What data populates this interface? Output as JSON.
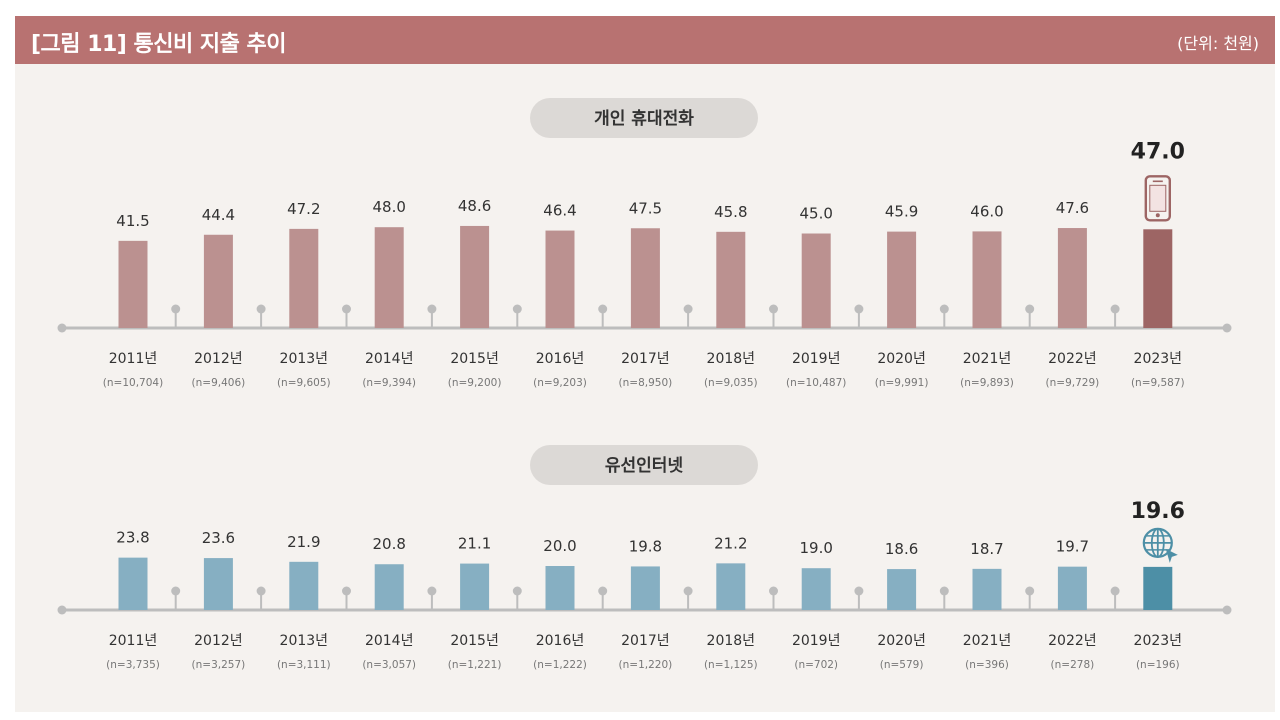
{
  "header": {
    "title": "[그림 11]  통신비 지출 추이",
    "unit": "(단위: 천원)"
  },
  "colors": {
    "header_bg": "#b87271",
    "panel_bg": "#f5f2ef",
    "mobile_bar": "#bb9190",
    "mobile_bar_highlight": "#9d6564",
    "internet_bar": "#86afc2",
    "internet_bar_highlight": "#4d8fa6",
    "axis": "#bdbdbd",
    "pill": "#dcd9d6"
  },
  "icons": [
    "smartphone-icon",
    "globe-icon"
  ],
  "chart_data": [
    {
      "type": "bar",
      "title": "개인 휴대전화",
      "categories": [
        "2011년",
        "2012년",
        "2013년",
        "2014년",
        "2015년",
        "2016년",
        "2017년",
        "2018년",
        "2019년",
        "2020년",
        "2021년",
        "2022년",
        "2023년"
      ],
      "sample_sizes": [
        "(n=10,704)",
        "(n=9,406)",
        "(n=9,605)",
        "(n=9,394)",
        "(n=9,200)",
        "(n=9,203)",
        "(n=8,950)",
        "(n=9,035)",
        "(n=10,487)",
        "(n=9,991)",
        "(n=9,893)",
        "(n=9,729)",
        "(n=9,587)"
      ],
      "values": [
        41.5,
        44.4,
        47.2,
        48.0,
        48.6,
        46.4,
        47.5,
        45.8,
        45.0,
        45.9,
        46.0,
        47.6,
        47.0
      ],
      "value_labels": [
        "41.5",
        "44.4",
        "47.2",
        "48.0",
        "48.6",
        "46.4",
        "47.5",
        "45.8",
        "45.0",
        "45.9",
        "46.0",
        "47.6",
        "47.0"
      ],
      "highlight_index": 12,
      "icon": "smartphone-icon"
    },
    {
      "type": "bar",
      "title": "유선인터넷",
      "categories": [
        "2011년",
        "2012년",
        "2013년",
        "2014년",
        "2015년",
        "2016년",
        "2017년",
        "2018년",
        "2019년",
        "2020년",
        "2021년",
        "2022년",
        "2023년"
      ],
      "sample_sizes": [
        "(n=3,735)",
        "(n=3,257)",
        "(n=3,111)",
        "(n=3,057)",
        "(n=1,221)",
        "(n=1,222)",
        "(n=1,220)",
        "(n=1,125)",
        "(n=702)",
        "(n=579)",
        "(n=396)",
        "(n=278)",
        "(n=196)"
      ],
      "values": [
        23.8,
        23.6,
        21.9,
        20.8,
        21.1,
        20.0,
        19.8,
        21.2,
        19.0,
        18.6,
        18.7,
        19.7,
        19.6
      ],
      "value_labels": [
        "23.8",
        "23.6",
        "21.9",
        "20.8",
        "21.1",
        "20.0",
        "19.8",
        "21.2",
        "19.0",
        "18.6",
        "18.7",
        "19.7",
        "19.6"
      ],
      "highlight_index": 12,
      "icon": "globe-icon"
    }
  ]
}
